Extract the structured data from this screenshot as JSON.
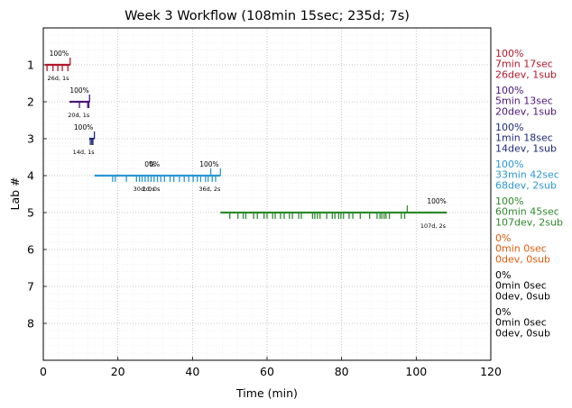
{
  "chart_data": {
    "type": "timeline",
    "title": "Week 3 Workflow (108min 15sec; 235d; 7s)",
    "xlabel": "Time (min)",
    "ylabel": "Lab #",
    "xlim": [
      0,
      120
    ],
    "ylim": [
      9,
      0
    ],
    "x_ticks": [
      0,
      20,
      40,
      60,
      80,
      100,
      120
    ],
    "y_ticks": [
      1,
      2,
      3,
      4,
      5,
      6,
      7,
      8
    ],
    "grid": true,
    "labs": [
      {
        "lab": 1,
        "color": "#b2182b",
        "start": 0.5,
        "end": 7.2,
        "ticks_down": [
          1.0,
          2.6,
          3.9,
          5.1,
          6.6
        ],
        "ticks_up": [
          7.2
        ],
        "pct_label": "100%",
        "pct_x": 4.2,
        "stat_label": "26d, 1s",
        "stat_x": 4.0,
        "side": [
          "100%",
          "7min 17sec",
          "26dev, 1sub"
        ]
      },
      {
        "lab": 2,
        "color": "#4b1578",
        "start": 7.0,
        "end": 12.5,
        "ticks_down": [
          9.7,
          11.9,
          12.2
        ],
        "ticks_up": [
          12.4
        ],
        "pct_label": "100%",
        "pct_x": 9.7,
        "stat_label": "20d, 1s",
        "stat_x": 9.5,
        "side": [
          "100%",
          "5min 13sec",
          "20dev, 1sub"
        ]
      },
      {
        "lab": 3,
        "color": "#1f2a7a",
        "start": 12.3,
        "end": 13.7,
        "ticks_down": [
          12.6,
          13.0,
          13.3
        ],
        "ticks_up": [
          13.7
        ],
        "pct_label": "100%",
        "pct_x": 10.8,
        "stat_label": "14d, 1s",
        "stat_x": 10.8,
        "side": [
          "100%",
          "1min 18sec",
          "14dev, 1sub"
        ]
      },
      {
        "lab": 4,
        "color": "#2b97d4",
        "start": 13.7,
        "end": 47.5,
        "ticks_down": [
          18.6,
          19.3,
          22.3,
          25.0,
          25.8,
          26.5,
          27.3,
          28.1,
          28.9,
          29.7,
          30.6,
          31.5,
          32.5,
          34.0,
          35.0,
          36.5,
          37.8,
          39.0,
          40.2,
          41.3,
          42.2,
          43.5,
          44.2,
          45.3,
          46.2
        ],
        "ticks_up": [
          44.9,
          47.5
        ],
        "pct_label": "100%",
        "pct_x": 44.5,
        "stat_label": "36d, 2s",
        "stat_x": 44.6,
        "extra_labels": [
          {
            "text": "0%",
            "x": 28.6,
            "row": "pct"
          },
          {
            "text": "0%",
            "x": 29.8,
            "row": "pct"
          },
          {
            "text": "30d, 0s",
            "x": 27.0,
            "row": "stat"
          },
          {
            "text": "2d, 0s",
            "x": 28.9,
            "row": "stat"
          }
        ],
        "side": [
          "100%",
          "33min 42sec",
          "68dev, 2sub"
        ]
      },
      {
        "lab": 5,
        "color": "#2e8a2e",
        "start": 47.5,
        "end": 108.2,
        "ticks_down": [
          50.0,
          52.2,
          53.6,
          54.3,
          56.4,
          57.4,
          59.2,
          60.0,
          61.5,
          62.2,
          63.6,
          64.6,
          66.0,
          66.8,
          68.5,
          69.2,
          72.2,
          72.8,
          73.5,
          74.2,
          76.0,
          77.5,
          78.2,
          79.2,
          79.8,
          80.5,
          82.0,
          83.0,
          85.0,
          87.5,
          89.5,
          90.3,
          90.8,
          91.4,
          91.9,
          92.8,
          96.0,
          96.9
        ],
        "ticks_up": [
          97.6
        ],
        "pct_label": "100%",
        "pct_x": 105.5,
        "stat_label": "107d, 2s",
        "stat_x": 104.5,
        "side": [
          "100%",
          "60min 45sec",
          "107dev, 2sub"
        ]
      },
      {
        "lab": 6,
        "color": "#e05a0a",
        "side": [
          "0%",
          "0min 0sec",
          "0dev, 0sub"
        ]
      },
      {
        "lab": 7,
        "color": "#000000",
        "side": [
          "0%",
          "0min 0sec",
          "0dev, 0sub"
        ]
      },
      {
        "lab": 8,
        "color": "#000000",
        "side": [
          "0%",
          "0min 0sec",
          "0dev, 0sub"
        ]
      }
    ]
  }
}
